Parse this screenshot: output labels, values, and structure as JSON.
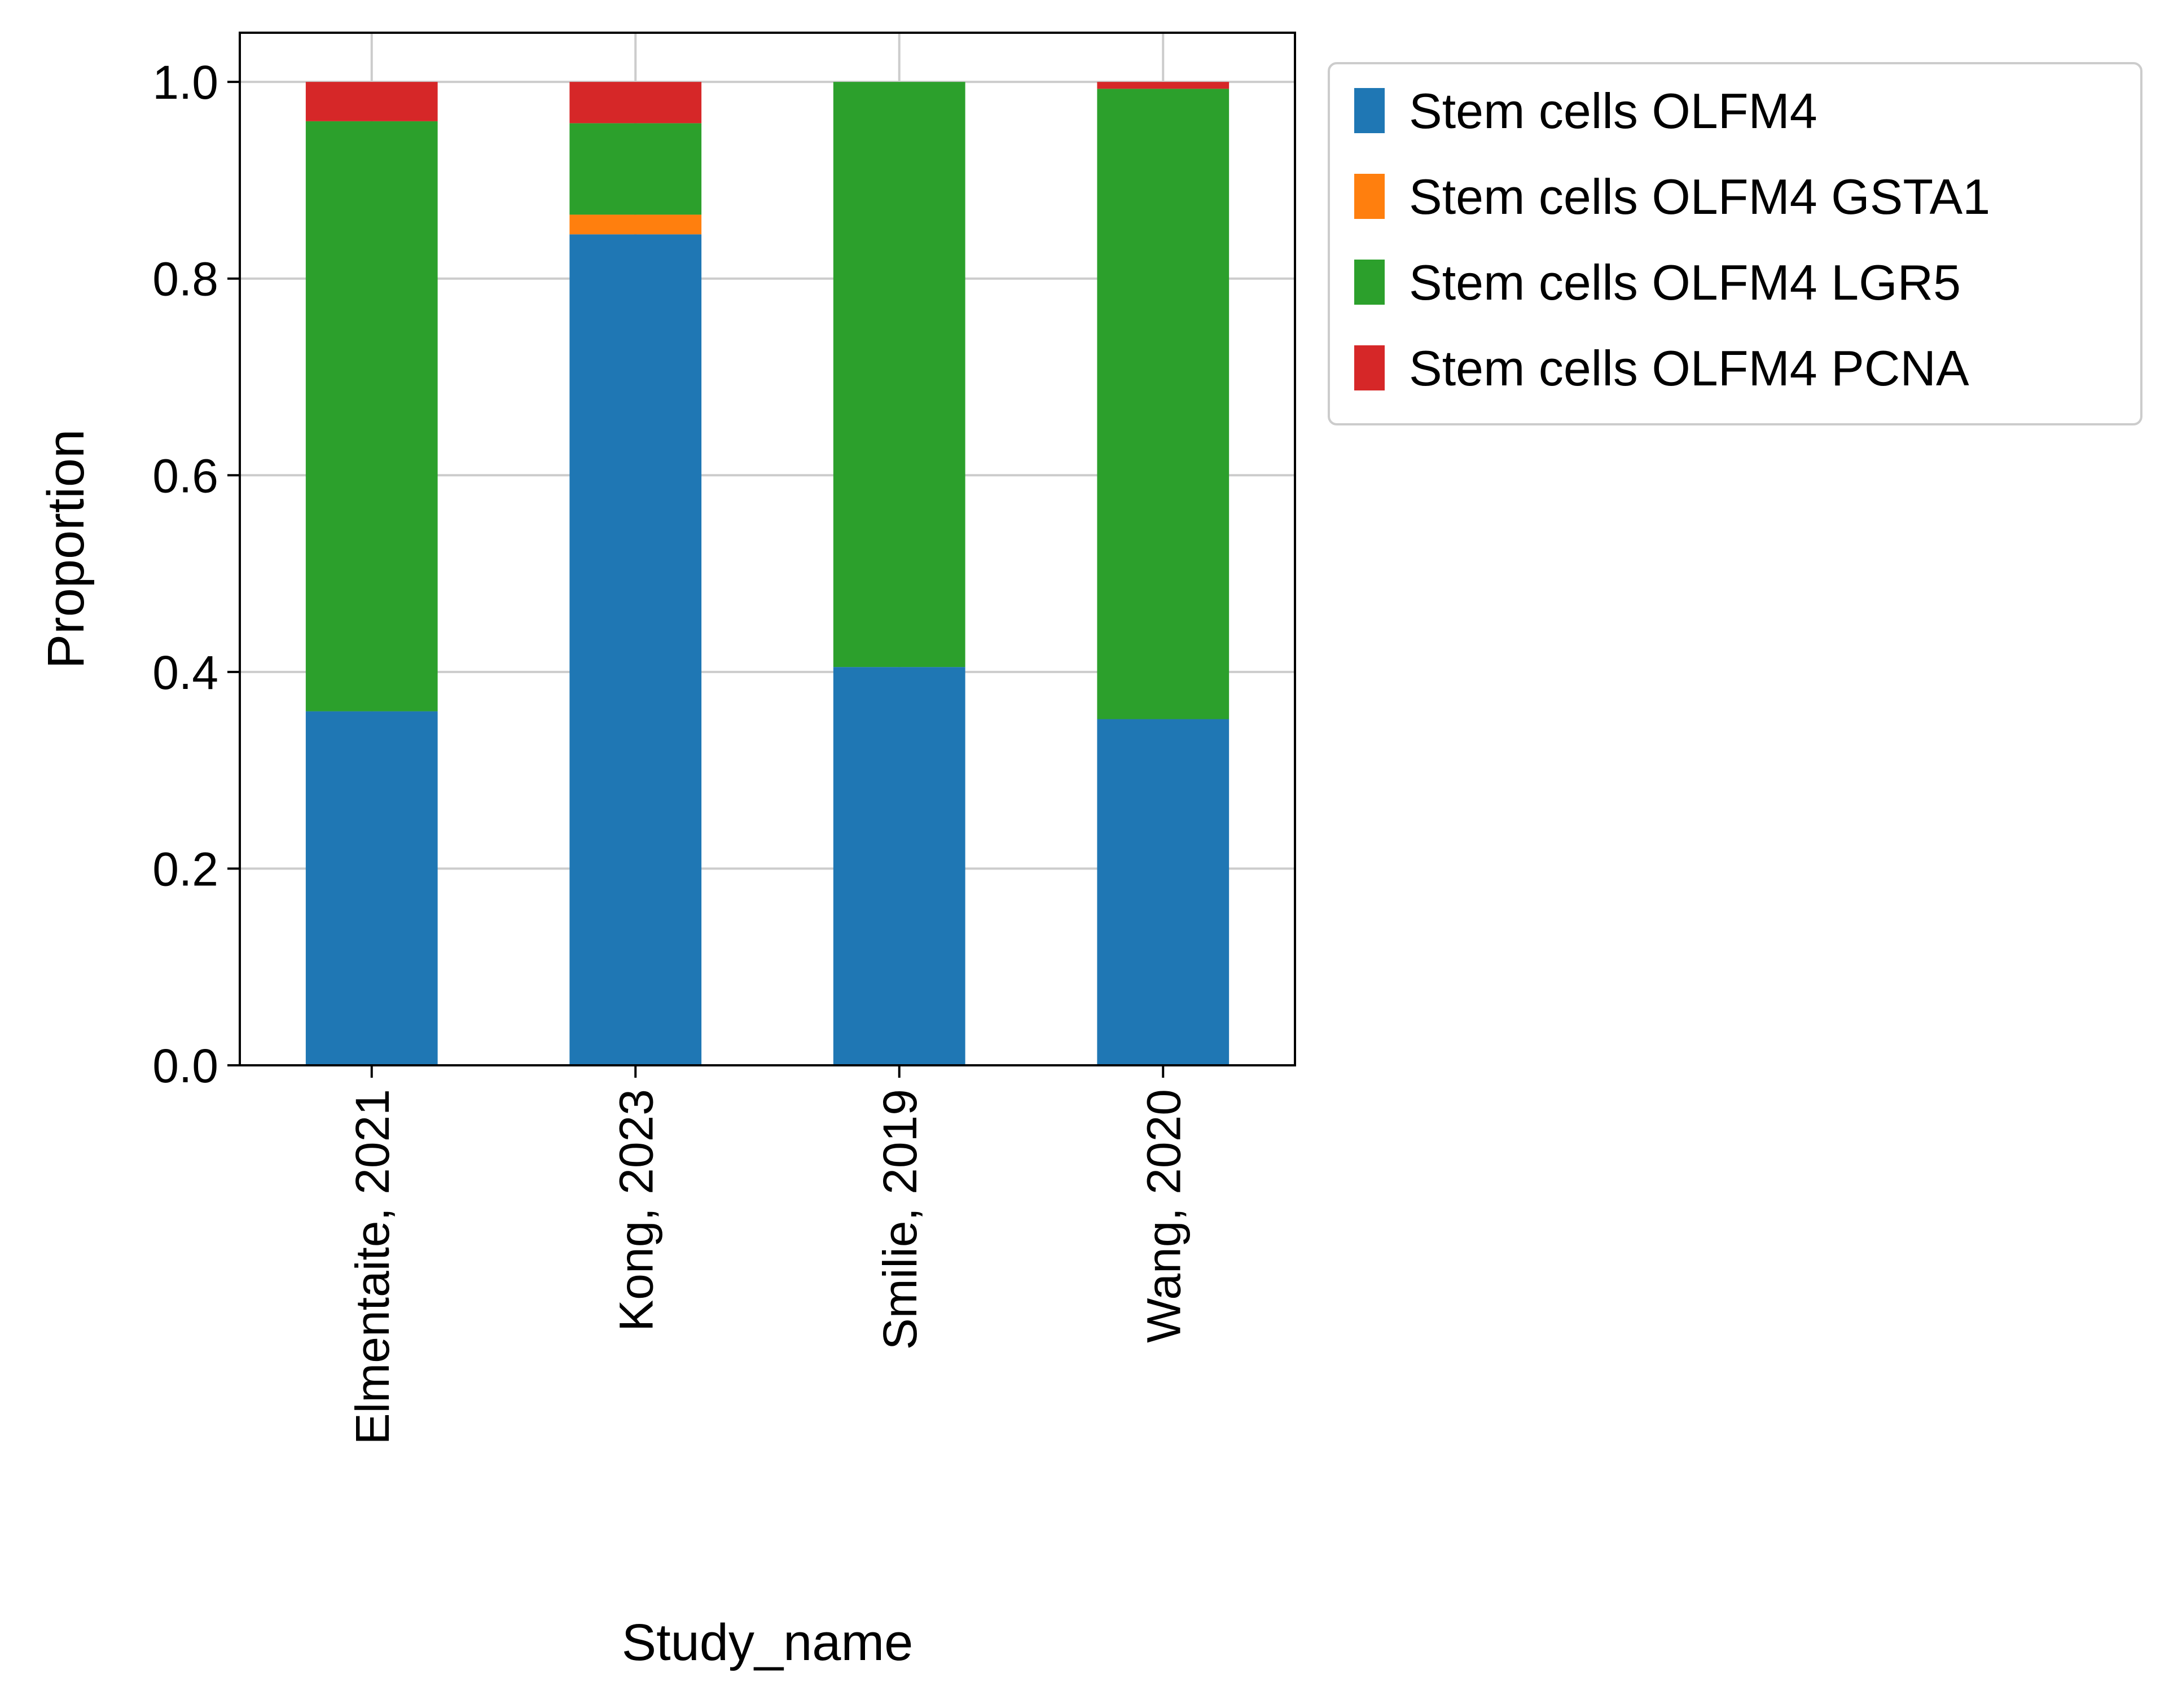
{
  "chart_data": {
    "type": "bar",
    "stacked": true,
    "xlabel": "Study_name",
    "ylabel": "Proportion",
    "categories": [
      "Elmentaite, 2021",
      "Kong, 2023",
      "Smilie, 2019",
      "Wang, 2020"
    ],
    "series": [
      {
        "name": "Stem cells OLFM4",
        "color": "#1f77b4",
        "values": [
          0.36,
          0.845,
          0.405,
          0.352
        ]
      },
      {
        "name": "Stem cells OLFM4 GSTA1",
        "color": "#ff7f0e",
        "values": [
          0.0,
          0.02,
          0.0,
          0.0
        ]
      },
      {
        "name": "Stem cells OLFM4 LGR5",
        "color": "#2ca02c",
        "values": [
          0.6,
          0.093,
          0.595,
          0.641
        ]
      },
      {
        "name": "Stem cells OLFM4 PCNA",
        "color": "#d62728",
        "values": [
          0.04,
          0.042,
          0.0,
          0.007
        ]
      }
    ],
    "ylim": [
      0,
      1.05
    ],
    "yticks": [
      "0.0",
      "0.2",
      "0.4",
      "0.6",
      "0.8",
      "1.0"
    ],
    "grid": true,
    "legend_position": "outside top-right"
  }
}
